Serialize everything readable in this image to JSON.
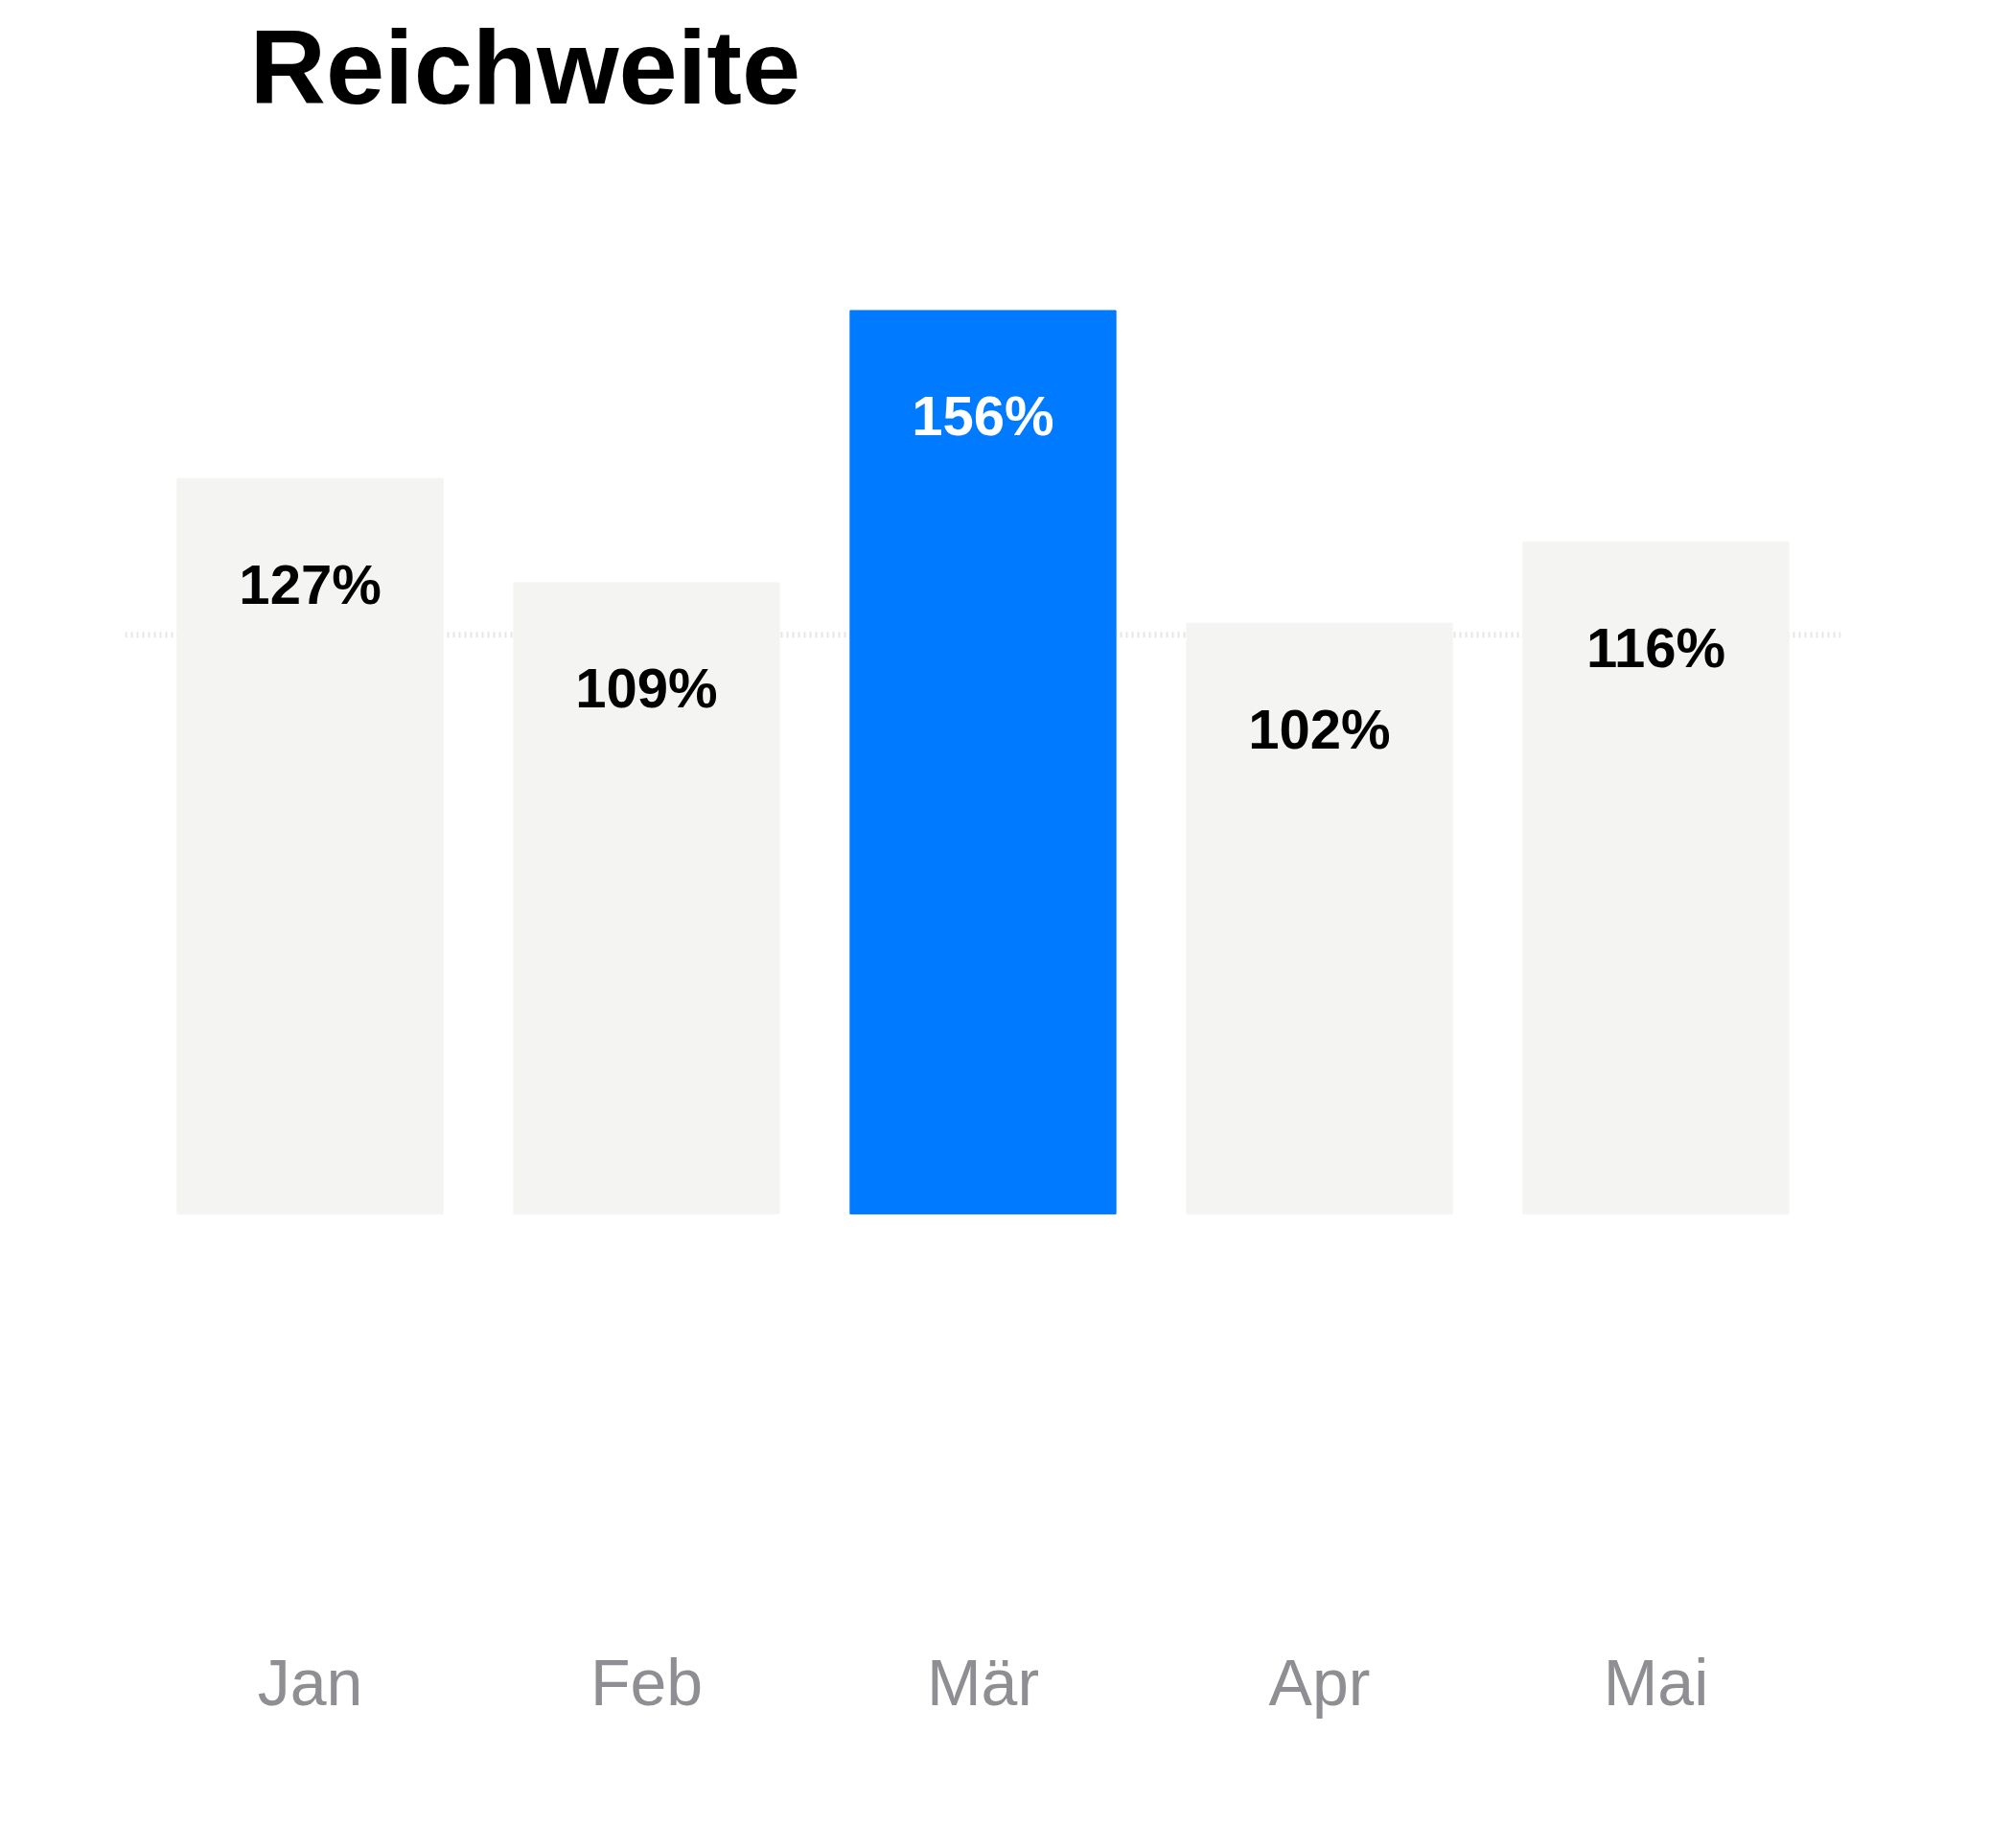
{
  "chart_data": {
    "type": "bar",
    "title": "Reichweite",
    "categories": [
      "Jan",
      "Feb",
      "Mär",
      "Apr",
      "Mai"
    ],
    "values": [
      127,
      109,
      156,
      102,
      116
    ],
    "colors": [
      "#f4f4f3",
      "#f4f4f3",
      "#007aff",
      "#f4f4f3",
      "#f4f4f3"
    ],
    "value_labels": [
      "127%",
      "109%",
      "156%",
      "102%",
      "116%"
    ],
    "ref_lines": [
      {
        "axis": "y",
        "value": 100,
        "color": "#e6e6e6",
        "line_style": "dotted"
      }
    ],
    "grid": false
  }
}
